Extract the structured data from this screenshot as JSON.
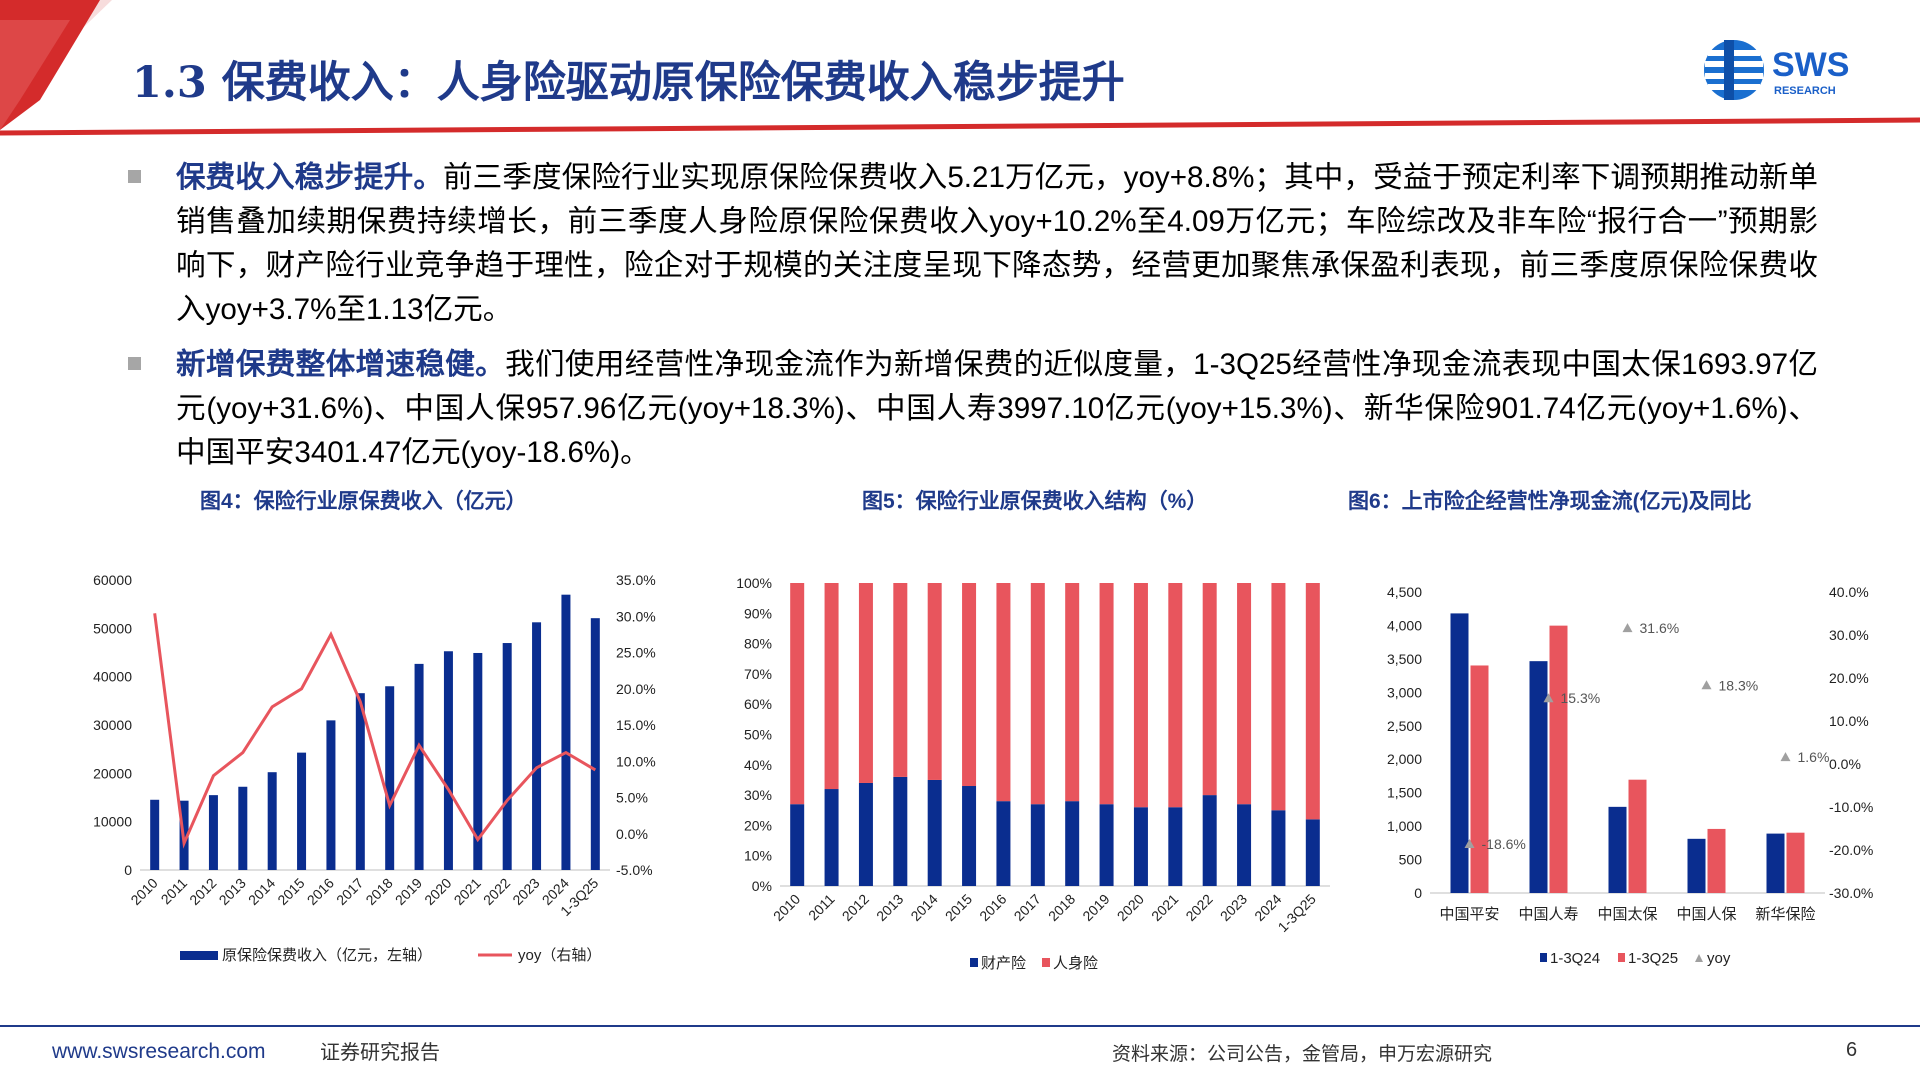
{
  "header": {
    "title": "1.3 保费收入：人身险驱动原保险保费收入稳步提升",
    "logo_text": "SWS",
    "logo_sub": "RESEARCH"
  },
  "bullets": [
    {
      "head": "保费收入稳步提升。",
      "body": "前三季度保险行业实现原保险保费收入5.21万亿元，yoy+8.8%；其中，受益于预定利率下调预期推动新单销售叠加续期保费持续增长，前三季度人身险原保险保费收入yoy+10.2%至4.09万亿元；车险综改及非车险“报行合一”预期影响下，财产险行业竞争趋于理性，险企对于规模的关注度呈现下降态势，经营更加聚焦承保盈利表现，前三季度原保险保费收入yoy+3.7%至1.13亿元。"
    },
    {
      "head": "新增保费整体增速稳健。",
      "body": "我们使用经营性净现金流作为新增保费的近似度量，1-3Q25经营性净现金流表现中国太保1693.97亿元(yoy+31.6%)、中国人保957.96亿元(yoy+18.3%)、中国人寿3997.10亿元(yoy+15.3%)、新华保险901.74亿元(yoy+1.6%)、中国平安3401.47亿元(yoy-18.6%)。"
    }
  ],
  "captions": {
    "fig4": "图4：保险行业原保费收入（亿元）",
    "fig5": "图5：保险行业原保费收入结构（%）",
    "fig6": "图6：上市险企经营性净现金流(亿元)及同比"
  },
  "colors": {
    "navy": "#1f3a8a",
    "bar_blue": "#0a2d8f",
    "line_red": "#e8555d",
    "bar_red": "#e8555d",
    "gray_marker": "#a0a0a0",
    "header_red": "#d42b2b"
  },
  "chart_data": [
    {
      "type": "bar",
      "categories": [
        "2010",
        "2011",
        "2012",
        "2013",
        "2014",
        "2015",
        "2016",
        "2017",
        "2018",
        "2019",
        "2020",
        "2021",
        "2022",
        "2023",
        "2024",
        "1-3Q25"
      ],
      "series": [
        {
          "name": "原保险保费收入（亿元，左轴）",
          "type": "bar",
          "axis": "left",
          "values": [
            14528,
            14339,
            15488,
            17222,
            20235,
            24283,
            30959,
            36581,
            38017,
            42645,
            45257,
            44900,
            46957,
            51247,
            56963,
            52100
          ]
        },
        {
          "name": "yoy（右轴）",
          "type": "line",
          "axis": "right",
          "values": [
            30.4,
            -1.3,
            8.0,
            11.2,
            17.5,
            20.0,
            27.5,
            18.2,
            3.9,
            12.2,
            6.1,
            -0.8,
            4.6,
            9.1,
            11.2,
            8.8
          ]
        }
      ],
      "yticks_left": [
        "0",
        "10000",
        "20000",
        "30000",
        "40000",
        "50000",
        "60000"
      ],
      "yticks_right": [
        "-5.0%",
        "0.0%",
        "5.0%",
        "10.0%",
        "15.0%",
        "20.0%",
        "25.0%",
        "30.0%",
        "35.0%"
      ],
      "ylim_left": [
        0,
        60000
      ],
      "ylim_right": [
        -5,
        35
      ],
      "legend": [
        "原保险保费收入（亿元，左轴）",
        "yoy（右轴）"
      ]
    },
    {
      "type": "bar",
      "stacked": true,
      "categories": [
        "2010",
        "2011",
        "2012",
        "2013",
        "2014",
        "2015",
        "2016",
        "2017",
        "2018",
        "2019",
        "2020",
        "2021",
        "2022",
        "2023",
        "2024",
        "1-3Q25"
      ],
      "series": [
        {
          "name": "财产险",
          "values": [
            27,
            32,
            34,
            36,
            35,
            33,
            28,
            27,
            28,
            27,
            26,
            26,
            30,
            27,
            25,
            22
          ]
        },
        {
          "name": "人身险",
          "values": [
            73,
            68,
            66,
            64,
            65,
            67,
            72,
            73,
            72,
            73,
            74,
            74,
            70,
            73,
            75,
            78
          ]
        }
      ],
      "yticks": [
        "0%",
        "10%",
        "20%",
        "30%",
        "40%",
        "50%",
        "60%",
        "70%",
        "80%",
        "90%",
        "100%"
      ],
      "ylim": [
        0,
        100
      ],
      "legend": [
        "财产险",
        "人身险"
      ]
    },
    {
      "type": "bar",
      "categories": [
        "中国平安",
        "中国人寿",
        "中国太保",
        "中国人保",
        "新华保险"
      ],
      "series": [
        {
          "name": "1-3Q24",
          "axis": "left",
          "values": [
            4180,
            3466,
            1288,
            810,
            888
          ]
        },
        {
          "name": "1-3Q25",
          "axis": "left",
          "values": [
            3401.47,
            3997.1,
            1693.97,
            957.96,
            901.74
          ]
        },
        {
          "name": "yoy",
          "axis": "right",
          "type": "scatter",
          "values": [
            -18.6,
            15.3,
            31.6,
            18.3,
            1.6
          ],
          "labels": [
            "-18.6%",
            "15.3%",
            "31.6%",
            "18.3%",
            "1.6%"
          ]
        }
      ],
      "yticks_left": [
        "0",
        "500",
        "1,000",
        "1,500",
        "2,000",
        "2,500",
        "3,000",
        "3,500",
        "4,000",
        "4,500"
      ],
      "yticks_right": [
        "-30.0%",
        "-20.0%",
        "-10.0%",
        "0.0%",
        "10.0%",
        "20.0%",
        "30.0%",
        "40.0%"
      ],
      "ylim_left": [
        0,
        4500
      ],
      "ylim_right": [
        -30,
        40
      ],
      "legend": [
        "1-3Q24",
        "1-3Q25",
        "yoy"
      ]
    }
  ],
  "footer": {
    "url": "www.swsresearch.com",
    "label": "证券研究报告",
    "source": "资料来源：公司公告，金管局，申万宏源研究",
    "page": "6"
  }
}
